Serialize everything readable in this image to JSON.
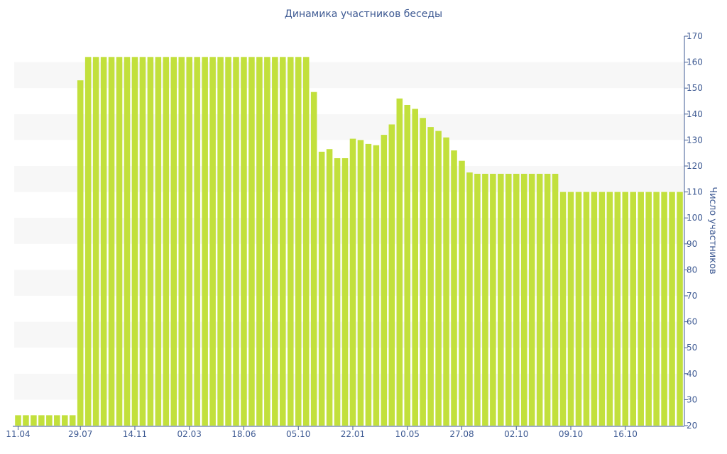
{
  "chart_data": {
    "type": "bar",
    "title": "Динамика участников беседы",
    "ylabel": "Число участников",
    "xlabel": "",
    "ylim": [
      20,
      170
    ],
    "yticks": [
      20,
      30,
      40,
      50,
      60,
      70,
      80,
      90,
      100,
      110,
      120,
      130,
      140,
      150,
      160,
      170
    ],
    "y_axis_position": "right",
    "grid": "alternating horizontal bands",
    "legend": "none",
    "x_tick_labels": [
      "11.04",
      "29.07",
      "14.11",
      "02.03",
      "18.06",
      "05.10",
      "22.01",
      "10.05",
      "27.08",
      "02.10",
      "09.10",
      "16.10"
    ],
    "x_tick_bar_index": [
      0,
      8,
      15,
      22,
      29,
      36,
      43,
      50,
      57,
      64,
      71,
      78
    ],
    "values": [
      24,
      24,
      24,
      24,
      24,
      24,
      24,
      24,
      153,
      162,
      162,
      162,
      162,
      162,
      162,
      162,
      162,
      162,
      162,
      162,
      162,
      162,
      162,
      162,
      162,
      162,
      162,
      162,
      162,
      162,
      162,
      162,
      162,
      162,
      162,
      162,
      162,
      162,
      148.5,
      125.5,
      126.5,
      123,
      123,
      130.5,
      130,
      128.5,
      128,
      132,
      136,
      146,
      143.5,
      142,
      138.5,
      135,
      133.5,
      131,
      126,
      122,
      117.5,
      117,
      117,
      117,
      117,
      117,
      117,
      117,
      117,
      117,
      117,
      117,
      110,
      110,
      110,
      110,
      110,
      110,
      110,
      110,
      110,
      110,
      110,
      110,
      110,
      110,
      110,
      110
    ],
    "colors": {
      "bar": "#c2e03c",
      "axis_text": "#3e5a93",
      "band": "#f7f7f7",
      "axis_line": "#3e5a93"
    }
  }
}
